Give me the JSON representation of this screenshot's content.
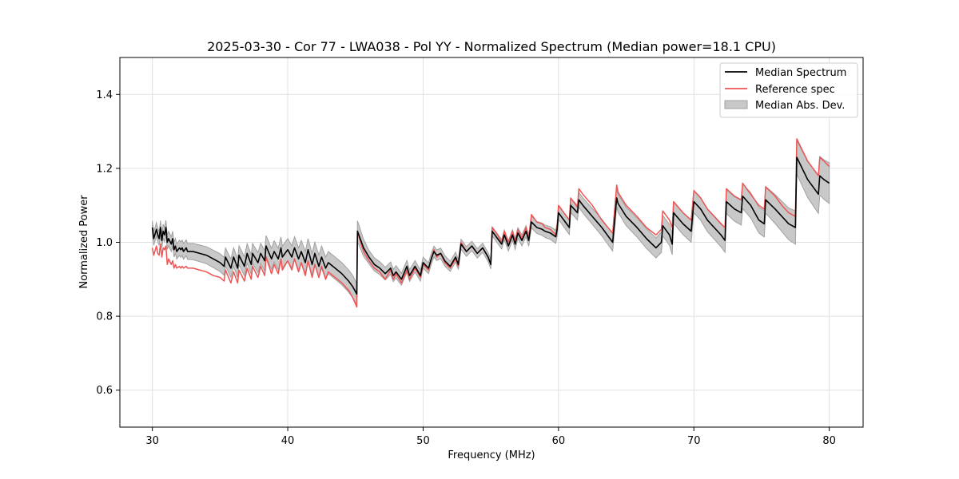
{
  "chart_data": {
    "type": "line",
    "title": "2025-03-30 - Cor 77 - LWA038 - Pol YY - Normalized Spectrum (Median power=18.1 CPU)",
    "xlabel": "Frequency (MHz)",
    "ylabel": "Normalized Power",
    "xlim": [
      27.6,
      82.5
    ],
    "ylim": [
      0.5,
      1.5
    ],
    "xticks": [
      30,
      40,
      50,
      60,
      70,
      80
    ],
    "yticks": [
      0.6,
      0.8,
      1.0,
      1.2,
      1.4
    ],
    "xtick_labels": [
      "30",
      "40",
      "50",
      "60",
      "70",
      "80"
    ],
    "ytick_labels": [
      "0.6",
      "0.8",
      "1.0",
      "1.2",
      "1.4"
    ],
    "grid": true,
    "legend_position": "top-right",
    "colors": {
      "median": "#000000",
      "reference": "#ee5555",
      "mad_fill": "#b3b3b3",
      "mad_edge": "#8c8c8c",
      "grid": "#e0e0e0"
    },
    "series": [
      {
        "name": "Median Spectrum",
        "x": [
          30.0,
          30.1,
          30.3,
          30.4,
          30.5,
          30.6,
          30.7,
          30.8,
          30.9,
          31.0,
          31.1,
          31.2,
          31.4,
          31.5,
          31.6,
          31.7,
          31.8,
          32.0,
          32.1,
          32.2,
          32.3,
          32.5,
          32.6,
          33.0,
          33.5,
          34.0,
          34.5,
          35.0,
          35.3,
          35.4,
          35.8,
          36.0,
          36.3,
          36.4,
          36.8,
          37.0,
          37.3,
          37.4,
          37.8,
          38.0,
          38.3,
          38.4,
          38.8,
          39.0,
          39.3,
          39.5,
          39.6,
          40.0,
          40.3,
          40.5,
          40.8,
          41.0,
          41.3,
          41.5,
          41.8,
          42.0,
          42.3,
          42.5,
          42.8,
          43.0,
          43.5,
          44.0,
          44.5,
          44.8,
          45.1,
          45.15,
          45.3,
          45.6,
          46.0,
          46.4,
          46.8,
          47.2,
          47.6,
          47.8,
          48.0,
          48.4,
          48.8,
          49.0,
          49.4,
          49.8,
          50.0,
          50.4,
          50.6,
          50.8,
          51.0,
          51.3,
          51.6,
          52.0,
          52.4,
          52.6,
          52.8,
          53.2,
          53.6,
          54.0,
          54.4,
          54.8,
          55.0,
          55.1,
          55.5,
          55.8,
          56.0,
          56.3,
          56.6,
          56.8,
          57.0,
          57.3,
          57.6,
          57.8,
          58.0,
          58.4,
          58.8,
          59.0,
          59.4,
          59.8,
          59.9,
          60.0,
          60.4,
          60.8,
          60.9,
          61.4,
          61.5,
          61.8,
          62.5,
          63.2,
          64.0,
          64.3,
          64.4,
          65.0,
          65.8,
          66.5,
          67.2,
          67.6,
          67.7,
          68.2,
          68.4,
          68.5,
          69.2,
          69.8,
          70.0,
          70.5,
          71.0,
          71.5,
          72.0,
          72.3,
          72.4,
          73.0,
          73.5,
          73.6,
          74.2,
          74.8,
          75.2,
          75.3,
          76.0,
          76.5,
          77.0,
          77.5,
          77.6,
          78.0,
          78.4,
          78.8,
          79.2,
          79.3,
          79.6,
          80.0
        ],
        "values": [
          1.04,
          1.01,
          1.035,
          1.02,
          1.01,
          1.04,
          1.005,
          1.03,
          1.02,
          1.04,
          1.0,
          1.01,
          0.995,
          1.01,
          0.98,
          0.99,
          0.975,
          0.985,
          0.98,
          0.985,
          0.975,
          0.985,
          0.975,
          0.975,
          0.97,
          0.965,
          0.955,
          0.945,
          0.935,
          0.96,
          0.93,
          0.96,
          0.93,
          0.965,
          0.935,
          0.97,
          0.94,
          0.97,
          0.945,
          0.97,
          0.95,
          0.99,
          0.955,
          0.975,
          0.955,
          0.985,
          0.96,
          0.98,
          0.96,
          0.985,
          0.955,
          0.975,
          0.945,
          0.98,
          0.94,
          0.97,
          0.935,
          0.96,
          0.93,
          0.945,
          0.93,
          0.915,
          0.895,
          0.88,
          0.86,
          1.03,
          1.015,
          0.985,
          0.96,
          0.94,
          0.93,
          0.915,
          0.93,
          0.91,
          0.92,
          0.9,
          0.935,
          0.91,
          0.935,
          0.91,
          0.945,
          0.93,
          0.955,
          0.975,
          0.965,
          0.97,
          0.95,
          0.935,
          0.96,
          0.94,
          0.995,
          0.975,
          0.99,
          0.97,
          0.985,
          0.96,
          0.94,
          1.03,
          1.01,
          0.995,
          1.02,
          0.99,
          1.02,
          0.995,
          1.025,
          1.005,
          1.03,
          1.005,
          1.055,
          1.04,
          1.035,
          1.03,
          1.025,
          1.015,
          1.035,
          1.08,
          1.06,
          1.04,
          1.1,
          1.08,
          1.115,
          1.1,
          1.07,
          1.04,
          1.0,
          1.12,
          1.105,
          1.07,
          1.04,
          1.01,
          0.985,
          1.0,
          1.045,
          1.02,
          0.995,
          1.08,
          1.05,
          1.03,
          1.11,
          1.09,
          1.06,
          1.04,
          1.02,
          1.005,
          1.11,
          1.09,
          1.08,
          1.125,
          1.1,
          1.06,
          1.05,
          1.115,
          1.09,
          1.07,
          1.05,
          1.04,
          1.23,
          1.2,
          1.17,
          1.15,
          1.13,
          1.18,
          1.17,
          1.16
        ]
      },
      {
        "name": "Reference spec",
        "x": [
          30.0,
          30.1,
          30.3,
          30.4,
          30.5,
          30.6,
          30.7,
          30.8,
          30.9,
          31.0,
          31.1,
          31.2,
          31.4,
          31.5,
          31.6,
          31.7,
          31.8,
          32.0,
          32.1,
          32.2,
          32.3,
          32.5,
          32.6,
          33.0,
          33.5,
          34.0,
          34.5,
          35.0,
          35.3,
          35.4,
          35.8,
          36.0,
          36.3,
          36.4,
          36.8,
          37.0,
          37.3,
          37.4,
          37.8,
          38.0,
          38.3,
          38.4,
          38.8,
          39.0,
          39.3,
          39.5,
          39.6,
          40.0,
          40.3,
          40.5,
          40.8,
          41.0,
          41.3,
          41.5,
          41.8,
          42.0,
          42.3,
          42.5,
          42.8,
          43.0,
          43.5,
          44.0,
          44.5,
          44.8,
          45.1,
          45.15,
          45.3,
          45.6,
          46.0,
          46.4,
          46.8,
          47.2,
          47.6,
          47.8,
          48.0,
          48.4,
          48.8,
          49.0,
          49.4,
          49.8,
          50.0,
          50.4,
          50.6,
          50.8,
          51.0,
          51.3,
          51.6,
          52.0,
          52.4,
          52.6,
          52.8,
          53.2,
          53.6,
          54.0,
          54.4,
          54.8,
          55.0,
          55.1,
          55.5,
          55.8,
          56.0,
          56.3,
          56.6,
          56.8,
          57.0,
          57.3,
          57.6,
          57.8,
          58.0,
          58.4,
          58.8,
          59.0,
          59.4,
          59.8,
          59.9,
          60.0,
          60.4,
          60.8,
          60.9,
          61.4,
          61.5,
          61.8,
          62.5,
          63.2,
          64.0,
          64.3,
          64.4,
          65.0,
          65.8,
          66.5,
          67.2,
          67.6,
          67.7,
          68.2,
          68.4,
          68.5,
          69.2,
          69.8,
          70.0,
          70.5,
          71.0,
          71.5,
          72.0,
          72.3,
          72.4,
          73.0,
          73.5,
          73.6,
          74.2,
          74.8,
          75.2,
          75.3,
          76.0,
          76.5,
          77.0,
          77.5,
          77.6,
          78.0,
          78.4,
          78.8,
          79.2,
          79.3,
          79.6,
          80.0
        ],
        "values": [
          0.985,
          0.965,
          0.99,
          0.97,
          0.965,
          0.995,
          0.96,
          0.985,
          0.98,
          0.99,
          0.94,
          0.955,
          0.94,
          0.95,
          0.93,
          0.94,
          0.93,
          0.935,
          0.93,
          0.935,
          0.93,
          0.935,
          0.93,
          0.93,
          0.925,
          0.92,
          0.91,
          0.905,
          0.895,
          0.925,
          0.89,
          0.92,
          0.89,
          0.925,
          0.895,
          0.93,
          0.9,
          0.935,
          0.905,
          0.935,
          0.91,
          0.96,
          0.915,
          0.94,
          0.915,
          0.955,
          0.925,
          0.95,
          0.925,
          0.955,
          0.92,
          0.945,
          0.91,
          0.95,
          0.905,
          0.94,
          0.905,
          0.935,
          0.9,
          0.92,
          0.905,
          0.89,
          0.87,
          0.85,
          0.825,
          1.03,
          1.01,
          0.975,
          0.95,
          0.93,
          0.92,
          0.9,
          0.925,
          0.9,
          0.915,
          0.89,
          0.925,
          0.9,
          0.93,
          0.905,
          0.94,
          0.925,
          0.955,
          0.98,
          0.96,
          0.97,
          0.945,
          0.93,
          0.955,
          0.935,
          1.0,
          0.975,
          0.99,
          0.97,
          0.985,
          0.96,
          0.94,
          1.04,
          1.02,
          1.0,
          1.03,
          1.0,
          1.03,
          1.005,
          1.035,
          1.01,
          1.04,
          1.01,
          1.075,
          1.055,
          1.05,
          1.04,
          1.035,
          1.02,
          1.045,
          1.1,
          1.08,
          1.06,
          1.12,
          1.095,
          1.145,
          1.13,
          1.1,
          1.06,
          1.025,
          1.155,
          1.135,
          1.1,
          1.07,
          1.04,
          1.02,
          1.035,
          1.085,
          1.06,
          1.04,
          1.11,
          1.08,
          1.06,
          1.14,
          1.12,
          1.09,
          1.07,
          1.05,
          1.04,
          1.145,
          1.125,
          1.115,
          1.16,
          1.13,
          1.1,
          1.09,
          1.15,
          1.125,
          1.1,
          1.08,
          1.07,
          1.28,
          1.25,
          1.22,
          1.2,
          1.18,
          1.23,
          1.22,
          1.205
        ]
      },
      {
        "name": "Median Abs. Dev.",
        "type": "band",
        "band_offsets": [
          [
            30.0,
            0.018
          ],
          [
            33.0,
            0.022
          ],
          [
            36.0,
            0.025
          ],
          [
            40.0,
            0.03
          ],
          [
            44.0,
            0.03
          ],
          [
            45.0,
            0.03
          ],
          [
            46.0,
            0.018
          ],
          [
            50.0,
            0.015
          ],
          [
            55.0,
            0.012
          ],
          [
            60.0,
            0.018
          ],
          [
            65.0,
            0.025
          ],
          [
            70.0,
            0.03
          ],
          [
            75.0,
            0.035
          ],
          [
            77.5,
            0.045
          ],
          [
            80.0,
            0.055
          ]
        ]
      }
    ]
  }
}
